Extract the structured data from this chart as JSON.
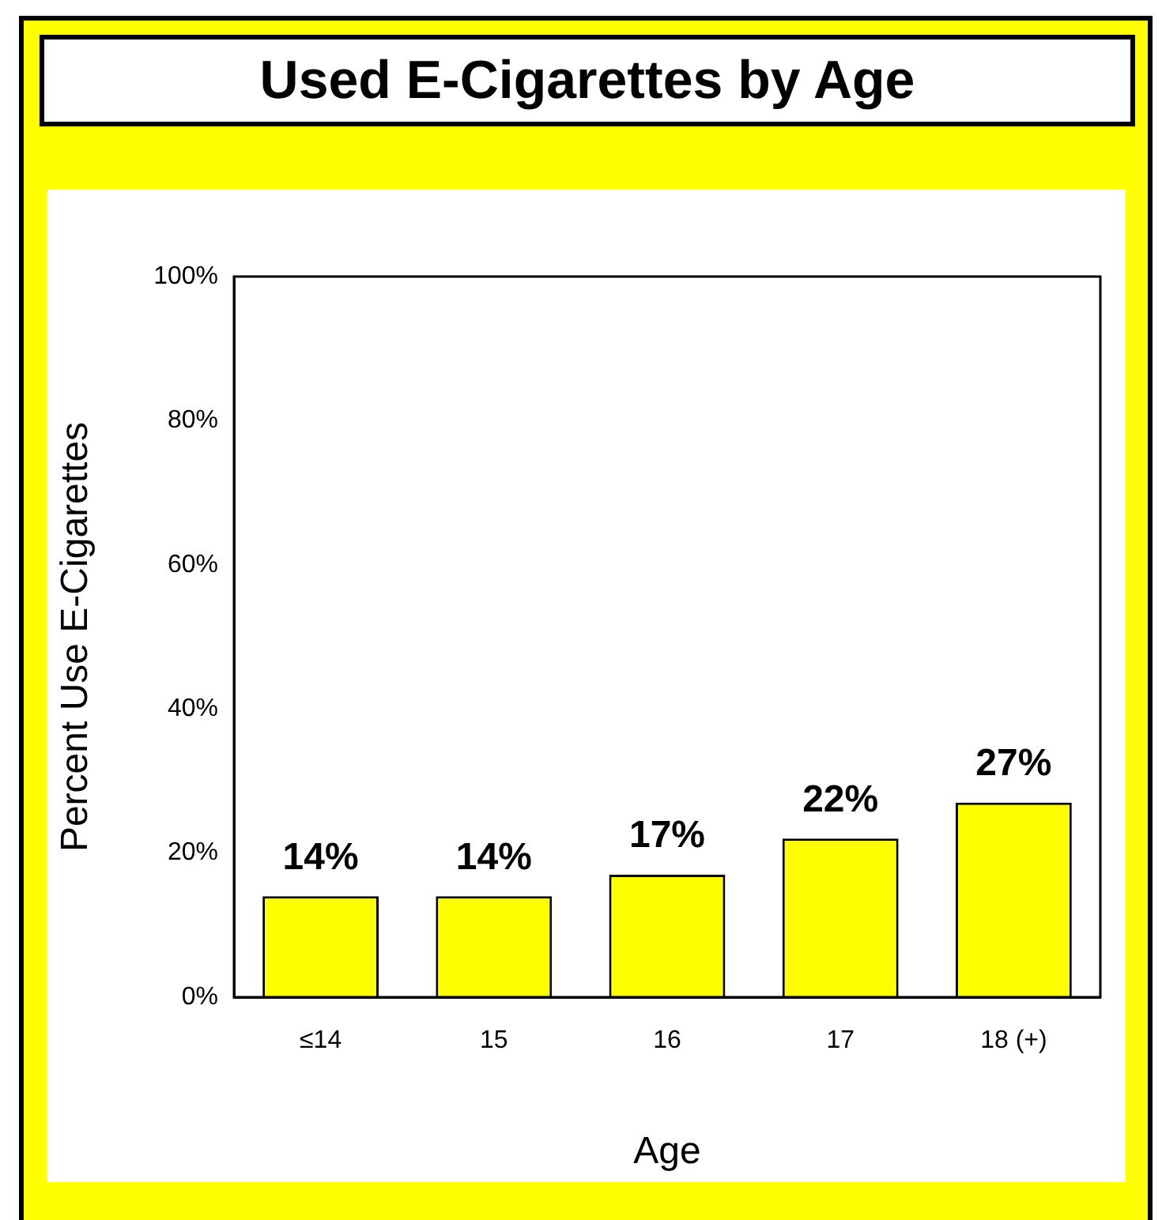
{
  "chart_data": {
    "type": "bar",
    "title": "Used E-Cigarettes by Age",
    "xlabel": "Age",
    "ylabel": "Percent Use E-Cigarettes",
    "categories": [
      "≤14",
      "15",
      "16",
      "17",
      "18 (+)"
    ],
    "values": [
      14,
      14,
      17,
      22,
      27
    ],
    "value_labels": [
      "14%",
      "14%",
      "17%",
      "22%",
      "27%"
    ],
    "color": "#ffff00",
    "ylim": [
      0,
      100
    ],
    "yticks": [
      {
        "value": 0,
        "label": "0%"
      },
      {
        "value": 20,
        "label": "20%"
      },
      {
        "value": 40,
        "label": "40%"
      },
      {
        "value": 60,
        "label": "60%"
      },
      {
        "value": 80,
        "label": "80%"
      },
      {
        "value": 100,
        "label": "100%"
      }
    ],
    "grid": false,
    "legend": false
  }
}
